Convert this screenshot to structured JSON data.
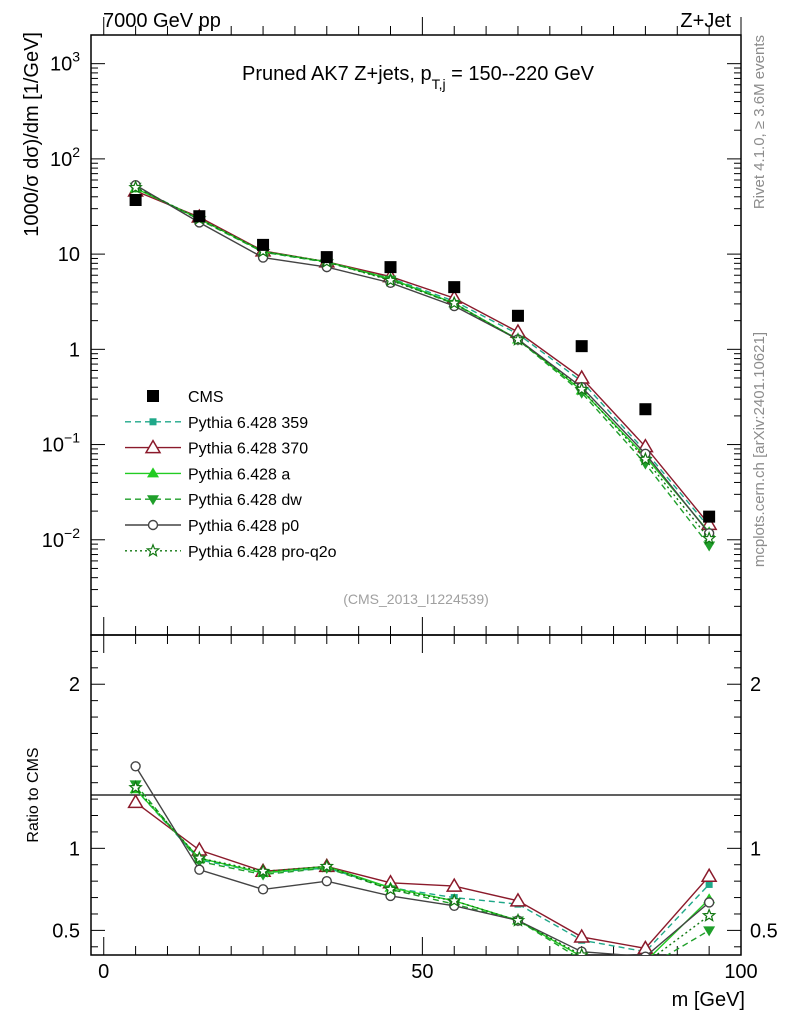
{
  "header": {
    "energy_label": "7000 GeV pp",
    "process_label": "Z+Jet"
  },
  "side_labels": {
    "rivet": "Rivet 4.1.0, ≥ 3.6M events",
    "mcplots": "mcplots.cern.ch [arXiv:2401.10621]"
  },
  "chart_data": [
    {
      "type": "line",
      "panel": "main",
      "title": "Pruned AK7 Z+jets, p_T,j = 150--220 GeV",
      "title_parts": {
        "prefix": "Pruned AK7 Z+jets, p",
        "sub": "T,j",
        "suffix": " = 150--220 GeV"
      },
      "ylabel": "1000/σ  dσ)/dm [1/GeV]",
      "xlabel": "",
      "yscale": "log",
      "ylim": [
        0.001,
        2000
      ],
      "xlim": [
        -2,
        100
      ],
      "y_ticks": [
        {
          "value": 0.01,
          "base": "10",
          "exp": "−2"
        },
        {
          "value": 0.1,
          "base": "10",
          "exp": "−1"
        },
        {
          "value": 1,
          "base": "1",
          "exp": ""
        },
        {
          "value": 10,
          "base": "10",
          "exp": ""
        },
        {
          "value": 100,
          "base": "10",
          "exp": "2"
        },
        {
          "value": 1000,
          "base": "10",
          "exp": "3"
        }
      ],
      "watermark": "(CMS_2013_I1224539)",
      "x": [
        5,
        15,
        25,
        35,
        45,
        55,
        65,
        75,
        85,
        95
      ],
      "series": [
        {
          "name": "CMS",
          "color": "#000000",
          "marker": "square",
          "dash": "none",
          "values": [
            37,
            25,
            12.5,
            9.3,
            7.3,
            4.5,
            2.25,
            1.08,
            0.235,
            0.0175
          ]
        },
        {
          "name": "Pythia 6.428 359",
          "color": "#1fa889",
          "marker": "smallsquare",
          "dash": "dashed",
          "values": [
            50,
            23.5,
            10.5,
            8.2,
            5.6,
            3.2,
            1.45,
            0.46,
            0.085,
            0.0135
          ]
        },
        {
          "name": "Pythia 6.428 370",
          "color": "#8b1a2b",
          "marker": "opentriangle",
          "dash": "solid",
          "values": [
            46,
            24.5,
            10.8,
            8.3,
            5.8,
            3.45,
            1.52,
            0.5,
            0.095,
            0.0145
          ]
        },
        {
          "name": "Pythia 6.428 a",
          "color": "#22cc22",
          "marker": "triangle",
          "dash": "solid",
          "values": [
            49,
            23.5,
            10.6,
            8.3,
            5.5,
            3.05,
            1.27,
            0.37,
            0.075,
            0.012
          ]
        },
        {
          "name": "Pythia 6.428 dw",
          "color": "#1f9f2a",
          "marker": "invtriangle",
          "dash": "dashed",
          "values": [
            51,
            23,
            10.5,
            8.2,
            5.4,
            3.0,
            1.26,
            0.35,
            0.063,
            0.0087
          ]
        },
        {
          "name": "Pythia 6.428 p0",
          "color": "#444444",
          "marker": "opencircle",
          "dash": "solid",
          "values": [
            53,
            21.5,
            9.2,
            7.3,
            5.0,
            2.85,
            1.27,
            0.4,
            0.08,
            0.0117
          ]
        },
        {
          "name": "Pythia 6.428 pro-q2o",
          "color": "#117711",
          "marker": "openstar",
          "dash": "dotted",
          "values": [
            50,
            23.5,
            10.7,
            8.3,
            5.3,
            3.05,
            1.26,
            0.38,
            0.07,
            0.0103
          ]
        }
      ]
    },
    {
      "type": "line",
      "panel": "ratio",
      "ylabel": "Ratio to CMS",
      "xlabel": "m [GeV]",
      "ylim": [
        0.35,
        2.3
      ],
      "xlim": [
        -2,
        100
      ],
      "y_ticks": [
        0.5,
        1,
        2
      ],
      "y_tick_labels": [
        "0.5",
        "1",
        "2"
      ],
      "x_ticks": [
        0,
        50,
        100
      ],
      "x_tick_labels": [
        "0",
        "50",
        "100"
      ],
      "reference": 1,
      "x": [
        5,
        15,
        25,
        35,
        45,
        55,
        65,
        75,
        85,
        95
      ],
      "series": [
        {
          "name": "Pythia 6.428 359",
          "color": "#1fa889",
          "marker": "smallsquare",
          "dash": "dashed",
          "values": [
            1.36,
            0.93,
            0.85,
            0.88,
            0.76,
            0.7,
            0.66,
            0.44,
            0.37,
            0.78
          ]
        },
        {
          "name": "Pythia 6.428 370",
          "color": "#8b1a2b",
          "marker": "opentriangle",
          "dash": "solid",
          "values": [
            1.28,
            0.99,
            0.86,
            0.89,
            0.79,
            0.77,
            0.68,
            0.46,
            0.39,
            0.83
          ]
        },
        {
          "name": "Pythia 6.428 a",
          "color": "#22cc22",
          "marker": "triangle",
          "dash": "solid",
          "values": [
            1.36,
            0.94,
            0.85,
            0.89,
            0.76,
            0.68,
            0.56,
            0.34,
            0.31,
            0.69
          ]
        },
        {
          "name": "Pythia 6.428 dw",
          "color": "#1f9f2a",
          "marker": "invtriangle",
          "dash": "dashed",
          "values": [
            1.39,
            0.92,
            0.84,
            0.88,
            0.75,
            0.66,
            0.56,
            0.32,
            0.27,
            0.5
          ]
        },
        {
          "name": "Pythia 6.428 p0",
          "color": "#444444",
          "marker": "opencircle",
          "dash": "solid",
          "values": [
            1.5,
            0.87,
            0.75,
            0.8,
            0.71,
            0.65,
            0.56,
            0.37,
            0.34,
            0.67
          ]
        },
        {
          "name": "Pythia 6.428 pro-q2o",
          "color": "#117711",
          "marker": "openstar",
          "dash": "dotted",
          "values": [
            1.37,
            0.94,
            0.86,
            0.89,
            0.75,
            0.68,
            0.56,
            0.35,
            0.3,
            0.59
          ]
        }
      ]
    }
  ]
}
